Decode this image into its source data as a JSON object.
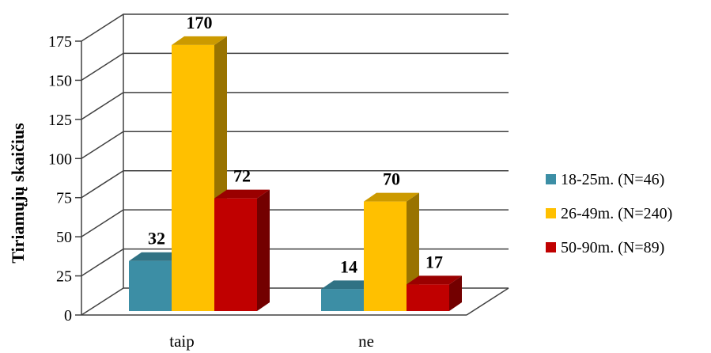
{
  "chart_data": {
    "type": "bar",
    "title": "",
    "xlabel": "",
    "ylabel": "Tiriamųjų skaičius",
    "ylim": [
      0,
      175
    ],
    "yticks": [
      0,
      25,
      50,
      75,
      100,
      125,
      150,
      175
    ],
    "categories": [
      "taip",
      "ne"
    ],
    "series": [
      {
        "name": "18-25m. (N=46)",
        "values": [
          32,
          14
        ],
        "color": "#3C8EA5"
      },
      {
        "name": "26-49m. (N=240)",
        "values": [
          170,
          70
        ],
        "color": "#FFC000"
      },
      {
        "name": "50-90m. (N=89)",
        "values": [
          72,
          17
        ],
        "color": "#C00000"
      }
    ],
    "grid": true,
    "legend": "right",
    "style": "3d-clustered"
  }
}
